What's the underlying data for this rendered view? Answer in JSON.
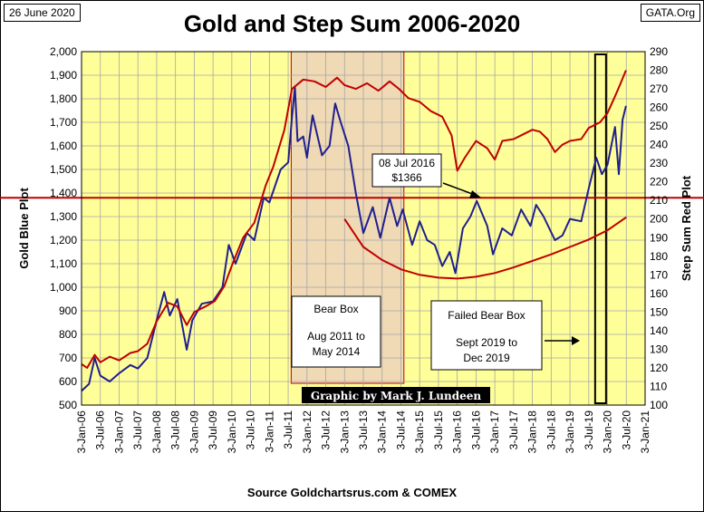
{
  "header": {
    "date": "26 June 2020",
    "site": "GATA.Org",
    "title": "Gold and Step Sum 2006-2020"
  },
  "footer": {
    "source": "Source Goldchartsrus.com & COMEX"
  },
  "colors": {
    "plot_bg": "#ffff99",
    "gold": "#1f1f8f",
    "step_sum": "#c00000",
    "grid": "#a6a6a6",
    "bear_box": "#f0d9b5"
  },
  "chart_data": {
    "type": "line",
    "x_tick_labels": [
      "3-Jan-06",
      "3-Jul-06",
      "3-Jan-07",
      "3-Jul-07",
      "3-Jan-08",
      "3-Jul-08",
      "3-Jan-09",
      "3-Jul-09",
      "3-Jan-10",
      "3-Jul-10",
      "3-Jan-11",
      "3-Jul-11",
      "3-Jan-12",
      "3-Jul-12",
      "3-Jan-13",
      "3-Jul-13",
      "3-Jan-14",
      "3-Jul-14",
      "3-Jan-15",
      "3-Jul-15",
      "3-Jan-16",
      "3-Jul-16",
      "3-Jan-17",
      "3-Jul-17",
      "3-Jan-18",
      "3-Jul-18",
      "3-Jan-19",
      "3-Jul-19",
      "3-Jan-20",
      "3-Jul-20",
      "3-Jan-21"
    ],
    "x_range_years": [
      2006.0,
      2021.0
    ],
    "y_left": {
      "label": "Gold   Blue Plot",
      "range": [
        500,
        2000
      ],
      "ticks": [
        "500",
        "600",
        "700",
        "800",
        "900",
        "1,000",
        "1,100",
        "1,200",
        "1,300",
        "1,400",
        "1,500",
        "1,600",
        "1,700",
        "1,800",
        "1,900",
        "2,000"
      ]
    },
    "y_right": {
      "label": "Step Sum    Red Plot",
      "range": [
        100,
        290
      ],
      "ticks": [
        "100",
        "110",
        "120",
        "130",
        "140",
        "150",
        "160",
        "170",
        "180",
        "190",
        "200",
        "210",
        "220",
        "230",
        "240",
        "250",
        "260",
        "270",
        "280",
        "290"
      ]
    },
    "grid": true,
    "series": [
      {
        "name": "Gold",
        "axis": "left",
        "points": [
          [
            2006.0,
            560
          ],
          [
            2006.2,
            590
          ],
          [
            2006.35,
            700
          ],
          [
            2006.5,
            625
          ],
          [
            2006.75,
            600
          ],
          [
            2007.0,
            635
          ],
          [
            2007.3,
            670
          ],
          [
            2007.5,
            655
          ],
          [
            2007.75,
            700
          ],
          [
            2008.0,
            860
          ],
          [
            2008.2,
            980
          ],
          [
            2008.35,
            880
          ],
          [
            2008.55,
            950
          ],
          [
            2008.8,
            735
          ],
          [
            2008.95,
            860
          ],
          [
            2009.2,
            930
          ],
          [
            2009.5,
            940
          ],
          [
            2009.75,
            1000
          ],
          [
            2009.92,
            1180
          ],
          [
            2010.1,
            1100
          ],
          [
            2010.4,
            1230
          ],
          [
            2010.6,
            1200
          ],
          [
            2010.85,
            1380
          ],
          [
            2011.0,
            1360
          ],
          [
            2011.3,
            1500
          ],
          [
            2011.5,
            1530
          ],
          [
            2011.6,
            1720
          ],
          [
            2011.68,
            1850
          ],
          [
            2011.75,
            1620
          ],
          [
            2011.9,
            1640
          ],
          [
            2012.0,
            1550
          ],
          [
            2012.15,
            1730
          ],
          [
            2012.4,
            1560
          ],
          [
            2012.6,
            1600
          ],
          [
            2012.75,
            1780
          ],
          [
            2012.9,
            1700
          ],
          [
            2013.1,
            1600
          ],
          [
            2013.3,
            1400
          ],
          [
            2013.5,
            1230
          ],
          [
            2013.75,
            1340
          ],
          [
            2013.95,
            1210
          ],
          [
            2014.2,
            1380
          ],
          [
            2014.4,
            1260
          ],
          [
            2014.55,
            1330
          ],
          [
            2014.8,
            1180
          ],
          [
            2015.0,
            1280
          ],
          [
            2015.2,
            1200
          ],
          [
            2015.4,
            1180
          ],
          [
            2015.6,
            1090
          ],
          [
            2015.8,
            1150
          ],
          [
            2015.95,
            1060
          ],
          [
            2016.15,
            1250
          ],
          [
            2016.35,
            1300
          ],
          [
            2016.52,
            1366
          ],
          [
            2016.8,
            1260
          ],
          [
            2016.95,
            1140
          ],
          [
            2017.2,
            1250
          ],
          [
            2017.45,
            1220
          ],
          [
            2017.7,
            1330
          ],
          [
            2017.95,
            1260
          ],
          [
            2018.1,
            1350
          ],
          [
            2018.3,
            1300
          ],
          [
            2018.6,
            1200
          ],
          [
            2018.8,
            1220
          ],
          [
            2019.0,
            1290
          ],
          [
            2019.3,
            1280
          ],
          [
            2019.5,
            1420
          ],
          [
            2019.7,
            1550
          ],
          [
            2019.85,
            1480
          ],
          [
            2020.0,
            1520
          ],
          [
            2020.2,
            1680
          ],
          [
            2020.3,
            1480
          ],
          [
            2020.4,
            1710
          ],
          [
            2020.49,
            1770
          ]
        ]
      },
      {
        "name": "Step Sum",
        "axis": "right",
        "points": [
          [
            2006.0,
            122
          ],
          [
            2006.15,
            120
          ],
          [
            2006.35,
            127
          ],
          [
            2006.5,
            123
          ],
          [
            2006.75,
            126
          ],
          [
            2007.0,
            124
          ],
          [
            2007.3,
            128
          ],
          [
            2007.5,
            129
          ],
          [
            2007.75,
            133
          ],
          [
            2008.0,
            145
          ],
          [
            2008.3,
            155
          ],
          [
            2008.55,
            153
          ],
          [
            2008.8,
            143
          ],
          [
            2009.0,
            150
          ],
          [
            2009.3,
            153
          ],
          [
            2009.55,
            156
          ],
          [
            2009.8,
            164
          ],
          [
            2010.0,
            175
          ],
          [
            2010.3,
            190
          ],
          [
            2010.6,
            198
          ],
          [
            2010.9,
            218
          ],
          [
            2011.1,
            228
          ],
          [
            2011.4,
            248
          ],
          [
            2011.6,
            270
          ],
          [
            2011.9,
            275
          ],
          [
            2012.2,
            274
          ],
          [
            2012.5,
            271
          ],
          [
            2012.8,
            276
          ],
          [
            2013.0,
            272
          ],
          [
            2013.3,
            270
          ],
          [
            2013.6,
            273
          ],
          [
            2013.9,
            269
          ],
          [
            2014.2,
            274
          ],
          [
            2014.45,
            270
          ],
          [
            2014.7,
            265
          ],
          [
            2015.0,
            263
          ],
          [
            2015.3,
            258
          ],
          [
            2015.6,
            255
          ],
          [
            2015.85,
            245
          ],
          [
            2016.0,
            226
          ],
          [
            2016.2,
            233
          ],
          [
            2016.5,
            242
          ],
          [
            2016.8,
            238
          ],
          [
            2017.0,
            232
          ],
          [
            2017.2,
            242
          ],
          [
            2017.5,
            243
          ],
          [
            2017.8,
            246
          ],
          [
            2018.0,
            248
          ],
          [
            2018.2,
            247
          ],
          [
            2018.4,
            243
          ],
          [
            2018.6,
            236
          ],
          [
            2018.8,
            240
          ],
          [
            2019.0,
            242
          ],
          [
            2019.3,
            243
          ],
          [
            2019.5,
            249
          ],
          [
            2019.8,
            252
          ],
          [
            2020.0,
            257
          ],
          [
            2020.2,
            266
          ],
          [
            2020.35,
            273
          ],
          [
            2020.49,
            280
          ]
        ]
      }
    ],
    "reference_lines": [
      {
        "name": "horizontal-level",
        "axis": "left",
        "value": 1380
      },
      {
        "name": "trend-curve",
        "axis": "right",
        "points": [
          [
            2013.0,
            200
          ],
          [
            2013.5,
            185
          ],
          [
            2014.0,
            178
          ],
          [
            2014.5,
            173
          ],
          [
            2015.0,
            170
          ],
          [
            2015.5,
            168.5
          ],
          [
            2016.0,
            168
          ],
          [
            2016.5,
            169
          ],
          [
            2017.0,
            171
          ],
          [
            2017.5,
            174
          ],
          [
            2018.0,
            177.5
          ],
          [
            2018.5,
            181
          ],
          [
            2019.0,
            185
          ],
          [
            2019.5,
            189
          ],
          [
            2020.0,
            194
          ],
          [
            2020.5,
            201
          ]
        ]
      }
    ],
    "bear_box": {
      "x": [
        2011.58,
        2014.58
      ],
      "label_lines": [
        "Bear Box",
        "Aug 2011 to",
        "May 2014"
      ]
    },
    "failed_bear_box": {
      "x": [
        2019.67,
        2019.96
      ],
      "label_lines": [
        "Failed Bear Box",
        "Sept 2019 to",
        "Dec 2019"
      ]
    },
    "annotation": {
      "label_lines": [
        "08 Jul 2016",
        "$1366"
      ],
      "x": 2016.52,
      "value": 1366
    },
    "credit": "Graphic by Mark J. Lundeen"
  }
}
